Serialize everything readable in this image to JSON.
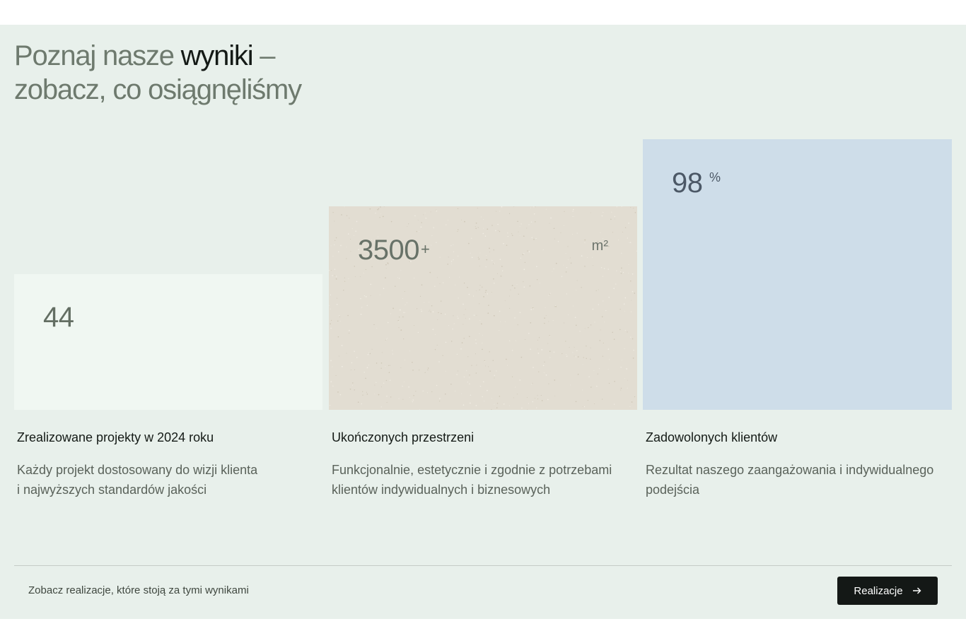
{
  "heading": {
    "part1": "Poznaj nasze ",
    "emphasis": "wyniki",
    "part2": " –",
    "line2": "zobacz, co osiągnęliśmy"
  },
  "stats": [
    {
      "value": "44",
      "title": "Zrealizowane projekty w 2024 roku",
      "text_line1": "Każdy projekt dostosowany do wizji klienta",
      "text_line2": "i najwyższych standardów jakości"
    },
    {
      "value": "3500",
      "suffix": "+",
      "unit": "m²",
      "title": "Ukończonych przestrzeni",
      "text_line1": "Funkcjonalnie, estetycznie i zgodnie z potrzebami",
      "text_line2": "klientów indywidualnych i biznesowych"
    },
    {
      "value": "98",
      "unit": "%",
      "title": "Zadowolonych klientów",
      "text_line1": "Rezultat naszego zaangażowania i indywidualnego",
      "text_line2": "podejścia"
    }
  ],
  "footer": {
    "text": "Zobacz realizacje, które stoją za tymi wynikami",
    "button_label": "Realizacje",
    "button_icon": "arrow-right-icon"
  },
  "colors": {
    "section_bg": "#e8f0eb",
    "card_1": "#f0f7f2",
    "card_2": "#e2ddd2",
    "card_3": "#cedde9",
    "button_bg": "#141816"
  }
}
